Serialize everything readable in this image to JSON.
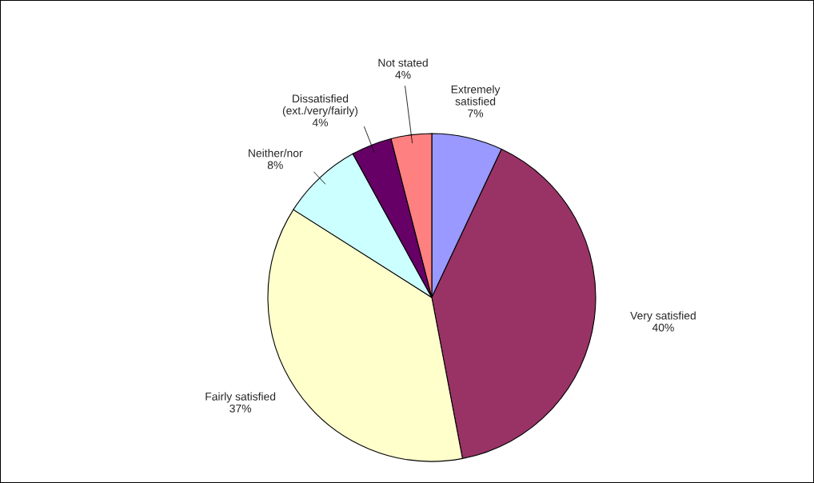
{
  "chart_data": {
    "type": "pie",
    "categories": [
      "Extremely\nsatisfied",
      "Very satisfied",
      "Fairly satisfied",
      "Neither/nor",
      "Dissatisfied\n(ext./very/fairly)",
      "Not stated"
    ],
    "values": [
      7,
      40,
      37,
      8,
      4,
      4
    ],
    "value_labels": [
      "7%",
      "40%",
      "37%",
      "8%",
      "4%",
      "4%"
    ],
    "colors": [
      "#9999ff",
      "#993366",
      "#ffffcc",
      "#ccffff",
      "#660066",
      "#ff8080"
    ]
  }
}
